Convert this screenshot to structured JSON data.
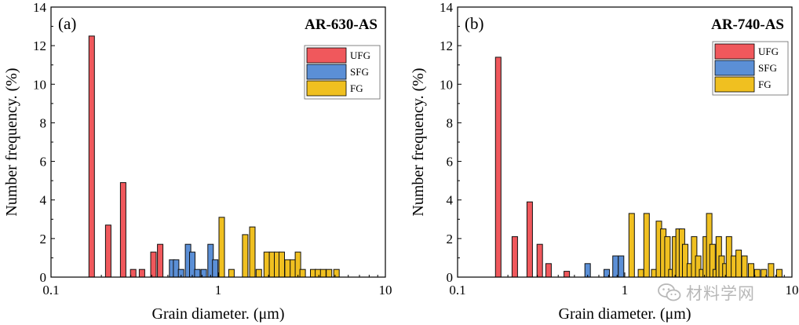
{
  "figure": {
    "watermark_text": "材料学网"
  },
  "chart_data": [
    {
      "type": "bar",
      "panel_label": "(a)",
      "title": "AR-630-AS",
      "xlabel": "Grain diameter. (μm)",
      "ylabel": "Number frequency. (%)",
      "xscale": "log",
      "xlim": [
        0.1,
        10
      ],
      "ylim": [
        0,
        14
      ],
      "xticks": [
        {
          "value": 0.1,
          "label": "0.1"
        },
        {
          "value": 1,
          "label": "1"
        },
        {
          "value": 10,
          "label": "10"
        }
      ],
      "yticks": [
        {
          "value": 0,
          "label": "0"
        },
        {
          "value": 2,
          "label": "2"
        },
        {
          "value": 4,
          "label": "4"
        },
        {
          "value": 6,
          "label": "6"
        },
        {
          "value": 8,
          "label": "8"
        },
        {
          "value": 10,
          "label": "10"
        },
        {
          "value": 12,
          "label": "12"
        },
        {
          "value": 14,
          "label": "14"
        }
      ],
      "legend_position": "top-right",
      "series": [
        {
          "name": "UFG",
          "color": "#f0585c",
          "x": [
            0.175,
            0.22,
            0.27,
            0.31,
            0.35,
            0.41,
            0.45
          ],
          "values": [
            12.5,
            2.7,
            4.9,
            0.4,
            0.4,
            1.3,
            1.7
          ]
        },
        {
          "name": "SFG",
          "color": "#5b8fd6",
          "x": [
            0.53,
            0.56,
            0.6,
            0.66,
            0.7,
            0.75,
            0.82,
            0.9,
            0.96
          ],
          "values": [
            0.9,
            0.9,
            0.4,
            1.7,
            1.3,
            0.4,
            0.4,
            1.7,
            0.9
          ]
        },
        {
          "name": "FG",
          "color": "#f0c020",
          "x": [
            1.05,
            1.2,
            1.45,
            1.6,
            1.75,
            1.95,
            2.1,
            2.25,
            2.4,
            2.6,
            2.8,
            3.0,
            3.2,
            3.7,
            3.95,
            4.25,
            4.6,
            5.1
          ],
          "values": [
            3.1,
            0.4,
            2.2,
            2.6,
            0.4,
            1.3,
            1.3,
            1.3,
            1.3,
            0.9,
            0.9,
            1.3,
            0.4,
            0.4,
            0.4,
            0.4,
            0.4,
            0.4
          ]
        }
      ]
    },
    {
      "type": "bar",
      "panel_label": "(b)",
      "title": "AR-740-AS",
      "xlabel": "Grain diameter. (μm)",
      "ylabel": "Number frequency. (%)",
      "xscale": "log",
      "xlim": [
        0.1,
        10
      ],
      "ylim": [
        0,
        14
      ],
      "xticks": [
        {
          "value": 0.1,
          "label": "0.1"
        },
        {
          "value": 1,
          "label": "1"
        },
        {
          "value": 10,
          "label": "10"
        }
      ],
      "yticks": [
        {
          "value": 0,
          "label": "0"
        },
        {
          "value": 2,
          "label": "2"
        },
        {
          "value": 4,
          "label": "4"
        },
        {
          "value": 6,
          "label": "6"
        },
        {
          "value": 8,
          "label": "8"
        },
        {
          "value": 10,
          "label": "10"
        },
        {
          "value": 12,
          "label": "12"
        },
        {
          "value": 14,
          "label": "14"
        }
      ],
      "legend_position": "top-right",
      "series": [
        {
          "name": "UFG",
          "color": "#f0585c",
          "x": [
            0.175,
            0.22,
            0.27,
            0.31,
            0.35,
            0.45
          ],
          "values": [
            11.4,
            2.1,
            3.9,
            1.7,
            0.7,
            0.3
          ]
        },
        {
          "name": "SFG",
          "color": "#5b8fd6",
          "x": [
            0.6,
            0.78,
            0.88,
            0.95
          ],
          "values": [
            0.7,
            0.4,
            1.1,
            1.1
          ]
        },
        {
          "name": "FG",
          "color": "#f0c020",
          "x": [
            1.1,
            1.25,
            1.35,
            1.5,
            1.6,
            1.7,
            1.8,
            1.9,
            2.0,
            2.1,
            2.2,
            2.3,
            2.45,
            2.6,
            2.75,
            2.9,
            3.05,
            3.2,
            3.35,
            3.5,
            3.65,
            3.8,
            4.0,
            4.2,
            4.5,
            4.8,
            5.2,
            5.7,
            6.2,
            6.8,
            7.5,
            8.4
          ],
          "values": [
            3.3,
            0.4,
            3.3,
            0.4,
            2.9,
            2.5,
            2.1,
            0.4,
            2.1,
            2.5,
            2.5,
            1.7,
            0.7,
            2.1,
            1.1,
            0.4,
            2.1,
            3.3,
            1.7,
            0.4,
            2.1,
            1.1,
            0.7,
            2.1,
            1.1,
            1.4,
            1.1,
            0.7,
            0.4,
            0.4,
            0.7,
            0.4
          ]
        }
      ]
    }
  ]
}
